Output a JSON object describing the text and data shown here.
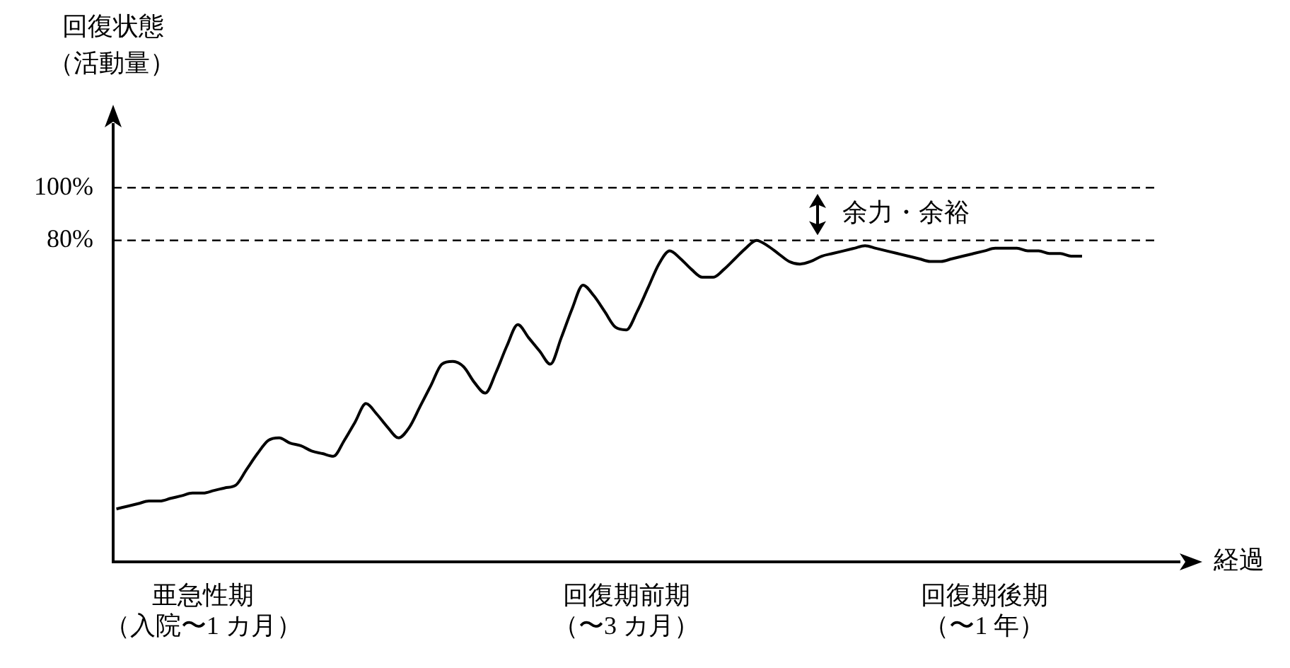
{
  "chart_data": {
    "type": "line",
    "ylabel": "回復状態（活動量）",
    "xlabel": "経過",
    "categories": [
      null,
      null,
      null,
      null,
      null,
      null,
      null,
      null,
      "亜急性期（入院〜1 カ月）",
      null,
      null,
      null,
      null,
      null,
      null,
      null,
      null,
      null,
      null,
      null,
      null,
      null,
      null,
      null,
      null,
      null,
      null,
      null,
      null,
      null,
      null,
      null,
      null,
      null,
      null,
      null,
      null,
      null,
      null,
      null,
      null,
      null,
      null,
      null,
      null,
      null,
      null,
      "回復期前期（〜3 カ月）",
      null,
      null,
      null,
      null,
      null,
      null,
      null,
      null,
      null,
      null,
      null,
      null,
      null,
      null,
      null,
      null,
      null,
      null,
      null,
      null,
      null,
      null,
      null,
      null,
      null,
      null,
      null,
      null,
      null,
      null,
      null,
      null,
      "回復期後期（〜1 年）",
      null,
      null,
      null,
      null,
      null,
      null,
      null,
      null,
      null
    ],
    "series": [
      {
        "color": "#000000",
        "values": [
          -22,
          -21,
          -20,
          -19,
          -19,
          -18,
          -17,
          -16,
          -16,
          -15,
          -14,
          -13,
          -7,
          -1,
          4,
          5,
          3,
          2,
          0,
          -1,
          -2,
          4,
          11,
          18,
          14,
          9,
          5,
          9,
          17,
          25,
          33,
          34,
          32,
          26,
          22,
          30,
          40,
          48,
          43,
          38,
          33,
          43,
          54,
          63,
          59,
          53,
          47,
          46,
          53,
          62,
          71,
          76,
          73,
          69,
          66,
          66,
          69,
          73,
          77,
          80,
          78,
          75,
          72,
          71,
          72,
          74,
          75,
          76,
          77,
          78,
          77,
          76,
          75,
          74,
          73,
          72,
          72,
          73,
          74,
          75,
          76,
          77,
          77,
          77,
          76,
          76,
          75,
          75,
          74,
          74
        ]
      }
    ],
    "ylim": [
      -42,
      124
    ],
    "yticks": [
      {
        "value": 80,
        "label": "80%"
      },
      {
        "value": 100,
        "label": "100%"
      }
    ],
    "ref_lines": [
      {
        "axis": "y",
        "value": 100,
        "line_style": "dashed",
        "color": "#000000"
      },
      {
        "axis": "y",
        "value": 80,
        "line_style": "dashed",
        "color": "#000000"
      }
    ],
    "annotations": [
      "余力・余裕"
    ],
    "grid": false,
    "legend": false,
    "marker": "none",
    "line_style": "solid"
  }
}
